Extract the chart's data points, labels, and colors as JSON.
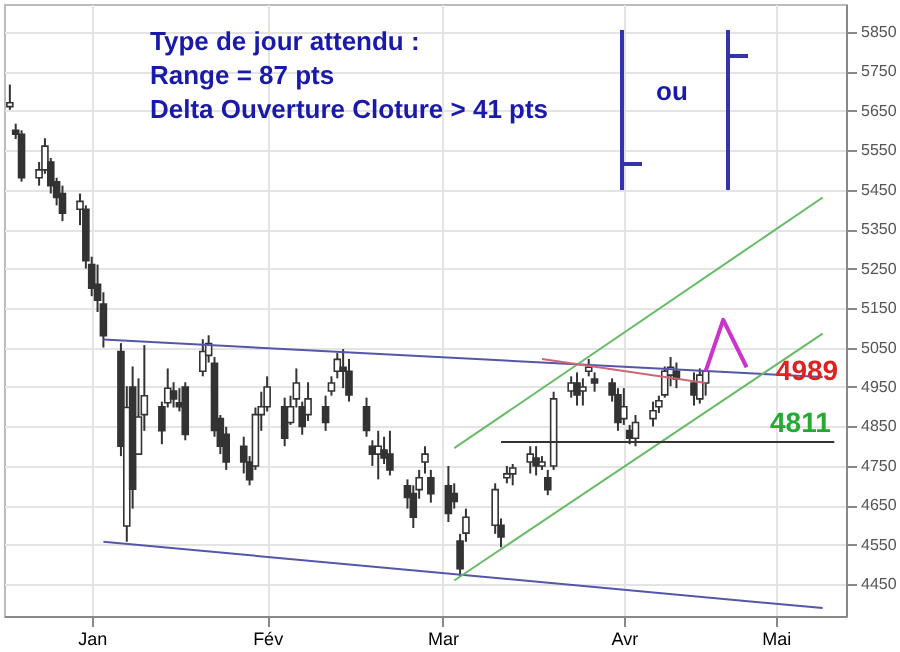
{
  "chart_data": {
    "type": "candlestick",
    "x": [
      "--01-02",
      "--01-03",
      "--01-04",
      "--01-07",
      "--01-08",
      "--01-09",
      "--01-10",
      "--01-11",
      "--01-14",
      "--01-15",
      "--01-16",
      "--01-17",
      "--01-18",
      "--01-21",
      "--01-22",
      "--01-23",
      "--01-24",
      "--01-25",
      "--01-28",
      "--01-29",
      "--01-30",
      "--01-31",
      "--02-01",
      "--02-04",
      "--02-05",
      "--02-06",
      "--02-07",
      "--02-08",
      "--02-11",
      "--02-12",
      "--02-13",
      "--02-14",
      "--02-15",
      "--02-18",
      "--02-19",
      "--02-20",
      "--02-21",
      "--02-22",
      "--02-25",
      "--02-26",
      "--02-27",
      "--02-28",
      "--02-29",
      "--03-03",
      "--03-04",
      "--03-05",
      "--03-06",
      "--03-07",
      "--03-10",
      "--03-11",
      "--03-12",
      "--03-13",
      "--03-14",
      "--03-17",
      "--03-18",
      "--03-19",
      "--03-20",
      "--03-25",
      "--03-26",
      "--03-27",
      "--03-28",
      "--03-31",
      "--04-01",
      "--04-02",
      "--04-03",
      "--04-04",
      "--04-07",
      "--04-08",
      "--04-09",
      "--04-10",
      "--04-11",
      "--04-14",
      "--04-15",
      "--04-16",
      "--04-17",
      "--04-18",
      "--04-21",
      "--04-22",
      "--04-23",
      "--04-24",
      "--04-25",
      "--04-28",
      "--04-29",
      "--04-30"
    ],
    "ohlc": [
      [
        5660,
        5716,
        5652,
        5670
      ],
      [
        5600,
        5617,
        5578,
        5590
      ],
      [
        5590,
        5600,
        5470,
        5480
      ],
      [
        5480,
        5520,
        5460,
        5500
      ],
      [
        5500,
        5580,
        5490,
        5560
      ],
      [
        5520,
        5530,
        5440,
        5460
      ],
      [
        5470,
        5480,
        5410,
        5430
      ],
      [
        5440,
        5460,
        5370,
        5390
      ],
      [
        5400,
        5440,
        5360,
        5420
      ],
      [
        5400,
        5410,
        5250,
        5270
      ],
      [
        5260,
        5280,
        5180,
        5200
      ],
      [
        5210,
        5260,
        5140,
        5170
      ],
      [
        5160,
        5190,
        5050,
        5080
      ],
      [
        5040,
        5061,
        4775,
        4800
      ],
      [
        4598,
        4952,
        4558,
        4898
      ],
      [
        4950,
        5002,
        4642,
        4691
      ],
      [
        4780,
        4972,
        4780,
        4874
      ],
      [
        4880,
        5056,
        4839,
        4928
      ],
      [
        4900,
        4913,
        4805,
        4839
      ],
      [
        4910,
        4997,
        4898,
        4947
      ],
      [
        4940,
        4962,
        4898,
        4920
      ],
      [
        4910,
        4947,
        4888,
        4900
      ],
      [
        4950,
        4962,
        4815,
        4830
      ],
      [
        4990,
        5071,
        4977,
        5040
      ],
      [
        5030,
        5081,
        5012,
        5060
      ],
      [
        5010,
        5026,
        4824,
        4840
      ],
      [
        4870,
        4879,
        4780,
        4800
      ],
      [
        4830,
        4849,
        4740,
        4760
      ],
      [
        4800,
        4824,
        4731,
        4760
      ],
      [
        4760,
        4775,
        4701,
        4715
      ],
      [
        4750,
        4898,
        4740,
        4880
      ],
      [
        4880,
        4938,
        4839,
        4900
      ],
      [
        4900,
        4977,
        4888,
        4950
      ],
      [
        4900,
        4923,
        4800,
        4820
      ],
      [
        4860,
        4928,
        4854,
        4900
      ],
      [
        4920,
        4997,
        4898,
        4960
      ],
      [
        4900,
        4913,
        4829,
        4850
      ],
      [
        4880,
        4962,
        4864,
        4920
      ],
      [
        4900,
        4928,
        4839,
        4860
      ],
      [
        4940,
        4977,
        4928,
        4960
      ],
      [
        4990,
        5036,
        4972,
        5020
      ],
      [
        5000,
        5046,
        4947,
        4990
      ],
      [
        4990,
        5021,
        4913,
        4930
      ],
      [
        4900,
        4923,
        4824,
        4840
      ],
      [
        4800,
        4815,
        4750,
        4780
      ],
      [
        4780,
        4839,
        4716,
        4800
      ],
      [
        4790,
        4824,
        4755,
        4770
      ],
      [
        4780,
        4839,
        4726,
        4740
      ],
      [
        4700,
        4716,
        4642,
        4670
      ],
      [
        4680,
        4701,
        4593,
        4620
      ],
      [
        4690,
        4740,
        4667,
        4720
      ],
      [
        4760,
        4800,
        4731,
        4780
      ],
      [
        4720,
        4740,
        4657,
        4680
      ],
      [
        4700,
        4750,
        4608,
        4630
      ],
      [
        4680,
        4706,
        4642,
        4660
      ],
      [
        4560,
        4578,
        4470,
        4490
      ],
      [
        4580,
        4642,
        4558,
        4620
      ],
      [
        4600,
        4706,
        4578,
        4690
      ],
      [
        4600,
        4617,
        4544,
        4570
      ],
      [
        4720,
        4750,
        4706,
        4730
      ],
      [
        4730,
        4755,
        4701,
        4745
      ],
      [
        4760,
        4800,
        4731,
        4780
      ],
      [
        4770,
        4800,
        4726,
        4750
      ],
      [
        4750,
        4775,
        4740,
        4760
      ],
      [
        4720,
        4740,
        4676,
        4690
      ],
      [
        4750,
        4938,
        4740,
        4920
      ],
      [
        4940,
        4977,
        4923,
        4960
      ],
      [
        4960,
        4987,
        4903,
        4930
      ],
      [
        4940,
        4972,
        4903,
        4950
      ],
      [
        4990,
        5021,
        4977,
        5000
      ],
      [
        4970,
        4987,
        4938,
        4960
      ],
      [
        4960,
        4972,
        4913,
        4930
      ],
      [
        4930,
        4947,
        4839,
        4860
      ],
      [
        4870,
        4947,
        4854,
        4900
      ],
      [
        4840,
        4854,
        4805,
        4820
      ],
      [
        4820,
        4879,
        4800,
        4860
      ],
      [
        4870,
        4913,
        4850,
        4890
      ],
      [
        4900,
        4928,
        4884,
        4915
      ],
      [
        4930,
        5002,
        4923,
        4990
      ],
      [
        4980,
        5026,
        4952,
        5000
      ],
      [
        4990,
        5012,
        4947,
        4970
      ],
      [
        4960,
        4987,
        4903,
        4930
      ],
      [
        4920,
        4997,
        4908,
        4980
      ],
      [
        4960,
        4997,
        4928,
        4990
      ]
    ],
    "series": [
      {
        "type": "line",
        "color": "#5555aa",
        "x": [
          "--01-18",
          "--05-20"
        ],
        "values": [
          5070,
          4975
        ]
      },
      {
        "type": "line",
        "color": "#5555aa",
        "x": [
          "--01-18",
          "--05-20"
        ],
        "values": [
          4558,
          4390
        ]
      },
      {
        "type": "line",
        "color": "#66bb66",
        "x": [
          "--03-18",
          "--05-20"
        ],
        "values": [
          4460,
          5085
        ]
      },
      {
        "type": "line",
        "color": "#66bb66",
        "x": [
          "--03-18",
          "--05-20"
        ],
        "values": [
          4795,
          5430
        ]
      },
      {
        "type": "line",
        "color": "#cc6677",
        "x": [
          "--04-02",
          "--04-30"
        ],
        "values": [
          5021,
          4960
        ]
      },
      {
        "type": "line",
        "color": "#333333",
        "x": [
          "--03-26",
          "--05-22"
        ],
        "values": [
          4811,
          4811
        ]
      },
      {
        "type": "line",
        "color": "#cc33cc",
        "x": [
          "--04-30",
          "--05-03",
          "--05-07"
        ],
        "values": [
          4990,
          5120,
          5000
        ]
      }
    ],
    "annotations": [
      "Type de jour attendu :",
      "Range = 87 pts",
      "Delta Ouverture Cloture > 41 pts",
      "ou",
      {
        "text": "4989",
        "x": "--05-12",
        "y": 4989
      },
      {
        "text": "4811",
        "x": "--05-11",
        "y": 4811
      }
    ],
    "xlim": [
      "--01-01",
      "--05-24"
    ],
    "xticks": [
      {
        "value": "--01-16",
        "label": "Jan"
      },
      {
        "value": "--02-15",
        "label": "Fév"
      },
      {
        "value": "--03-16",
        "label": "Mar"
      },
      {
        "value": "--04-16",
        "label": "Avr"
      },
      {
        "value": "--05-12",
        "label": "Mai"
      }
    ],
    "ylim": [
      4370,
      5920
    ],
    "yticks": [
      4450,
      4550,
      4650,
      4750,
      4850,
      4950,
      5050,
      5150,
      5250,
      5350,
      5450,
      5550,
      5650,
      5750,
      5850
    ],
    "grid": true
  }
}
